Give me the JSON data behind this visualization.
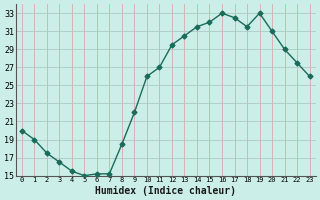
{
  "x": [
    0,
    1,
    2,
    3,
    4,
    5,
    6,
    7,
    8,
    9,
    10,
    11,
    12,
    13,
    14,
    15,
    16,
    17,
    18,
    19,
    20,
    21,
    22,
    23
  ],
  "y": [
    20,
    19,
    17.5,
    16.5,
    15.5,
    15,
    15.2,
    15.2,
    18.5,
    22,
    26,
    27,
    29.5,
    30.5,
    31.5,
    32,
    33,
    32.5,
    31.5,
    33,
    31,
    29,
    27.5,
    26
  ],
  "line_color": "#1a6b5a",
  "marker_color": "#1a6b5a",
  "bg_color": "#cceee8",
  "grid_color_h": "#b0c8c4",
  "grid_color_v": "#dbaaa8",
  "xlabel": "Humidex (Indice chaleur)",
  "ylim": [
    15,
    34
  ],
  "xlim": [
    -0.5,
    23.5
  ],
  "yticks": [
    15,
    17,
    19,
    21,
    23,
    25,
    27,
    29,
    31,
    33
  ],
  "xticks": [
    0,
    1,
    2,
    3,
    4,
    5,
    6,
    7,
    8,
    9,
    10,
    11,
    12,
    13,
    14,
    15,
    16,
    17,
    18,
    19,
    20,
    21,
    22,
    23
  ]
}
